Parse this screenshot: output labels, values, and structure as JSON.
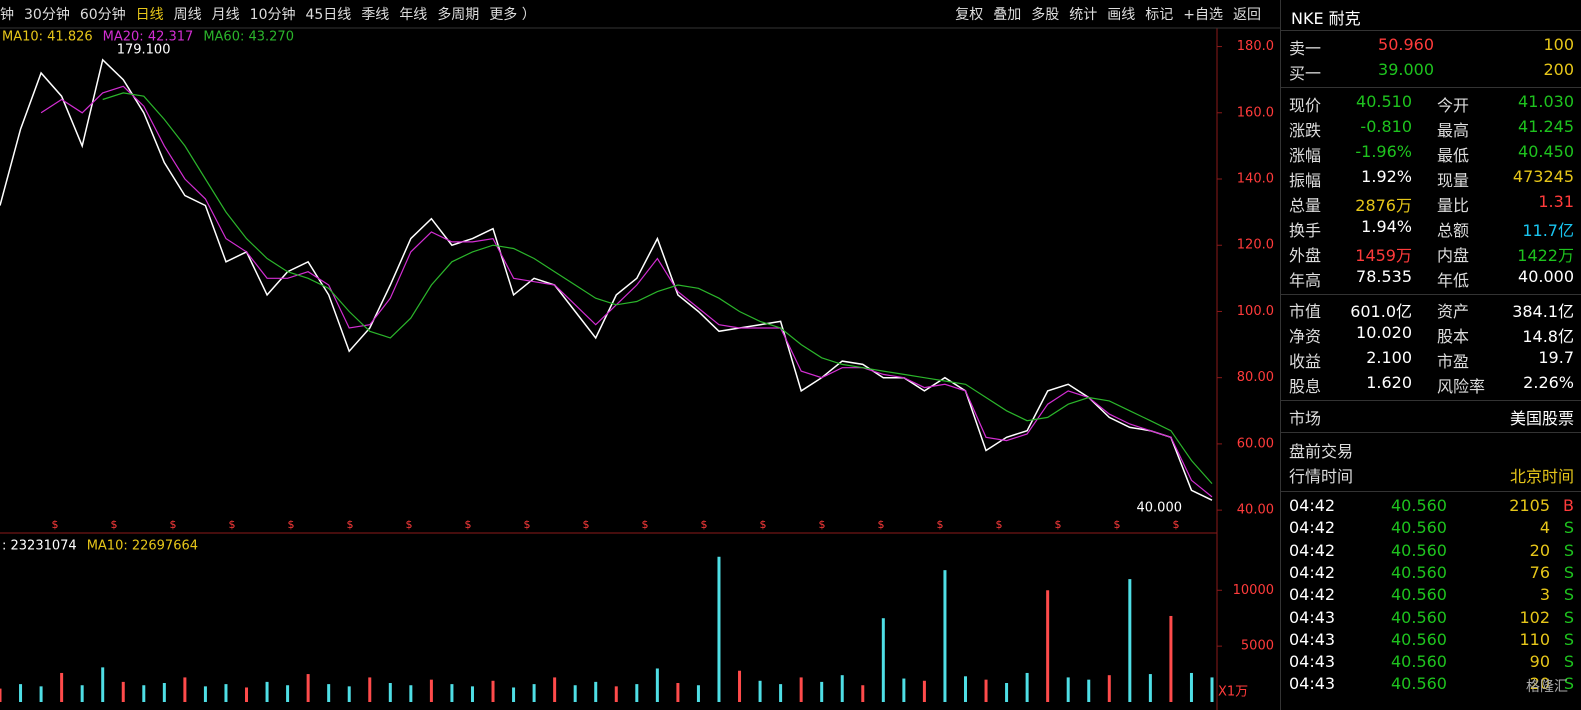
{
  "toolbar": {
    "periods": [
      "钟",
      "30分钟",
      "60分钟",
      "日线",
      "周线",
      "月线",
      "10分钟",
      "45日线",
      "季线",
      "年线",
      "多周期",
      "更多 ）"
    ],
    "active": "日线",
    "tools": [
      "复权",
      "叠加",
      "多股",
      "统计",
      "画线",
      "标记",
      "+自选",
      "返回"
    ]
  },
  "chart_data": {
    "type": "line",
    "ma_labels": [
      {
        "text": "MA10: 41.826",
        "color": "#e6c619"
      },
      {
        "text": "MA20: 42.317",
        "color": "#d22ed2"
      },
      {
        "text": "MA60: 43.270",
        "color": "#2bb52b"
      }
    ],
    "ylim": [
      34,
      185
    ],
    "yticks": [
      {
        "value": 40,
        "label": "40.00"
      },
      {
        "value": 60,
        "label": "60.00"
      },
      {
        "value": 80,
        "label": "80.00"
      },
      {
        "value": 100,
        "label": "100.0"
      },
      {
        "value": 120,
        "label": "120.0"
      },
      {
        "value": 140,
        "label": "140.0"
      },
      {
        "value": 160,
        "label": "160.0"
      },
      {
        "value": 180,
        "label": "180.0"
      }
    ],
    "series": [
      {
        "name": "Close",
        "color": "#ffffff",
        "values": [
          132,
          155,
          172,
          165,
          150,
          176,
          170,
          160,
          145,
          135,
          132,
          115,
          118,
          105,
          112,
          115,
          105,
          88,
          95,
          108,
          122,
          128,
          120,
          122,
          125,
          105,
          110,
          108,
          100,
          92,
          105,
          110,
          122,
          105,
          100,
          94,
          95,
          96,
          97,
          76,
          80,
          85,
          84,
          80,
          80,
          76,
          80,
          76,
          58,
          62,
          64,
          76,
          78,
          74,
          68,
          65,
          64,
          62,
          46,
          43
        ]
      },
      {
        "name": "MA20",
        "color": "#d22ed2",
        "values": [
          null,
          null,
          160,
          164,
          160,
          166,
          168,
          162,
          150,
          140,
          134,
          122,
          118,
          110,
          110,
          112,
          108,
          95,
          96,
          104,
          118,
          124,
          121,
          121,
          122,
          110,
          109,
          108,
          102,
          96,
          102,
          108,
          116,
          106,
          101,
          96,
          95,
          95,
          95,
          82,
          80,
          83,
          83,
          81,
          80,
          77,
          78,
          76,
          62,
          61,
          63,
          72,
          76,
          74,
          69,
          66,
          64,
          62,
          49,
          44
        ]
      },
      {
        "name": "MA60",
        "color": "#2bb52b",
        "values": [
          null,
          null,
          null,
          null,
          null,
          164,
          166,
          165,
          158,
          150,
          140,
          130,
          122,
          116,
          112,
          110,
          107,
          100,
          94,
          92,
          98,
          108,
          115,
          118,
          120,
          119,
          116,
          112,
          108,
          104,
          102,
          103,
          106,
          108,
          107,
          104,
          100,
          97,
          95,
          90,
          86,
          84,
          83,
          82,
          81,
          80,
          79,
          78,
          74,
          70,
          67,
          68,
          72,
          74,
          73,
          70,
          67,
          64,
          55,
          48
        ]
      }
    ],
    "annotations": {
      "high": "179.100",
      "low": "40.000"
    },
    "dividend_marker": "$",
    "volume": {
      "header": [
        ": 23231074",
        "MA10: 22697664"
      ],
      "unit": "X1万",
      "ylim": [
        0,
        14500
      ],
      "yticks": [
        5000,
        10000
      ],
      "color": "#4fdfe6",
      "values": [
        1200,
        1600,
        1400,
        2600,
        1500,
        3100,
        1800,
        1500,
        1700,
        2200,
        1400,
        1600,
        1300,
        1800,
        1500,
        2500,
        1600,
        1400,
        2200,
        1700,
        1500,
        2000,
        1600,
        1400,
        1900,
        1300,
        1600,
        2200,
        1500,
        1800,
        1400,
        1600,
        3000,
        1700,
        1500,
        13000,
        2800,
        1900,
        1600,
        2200,
        1800,
        2400,
        1500,
        7500,
        2100,
        1900,
        11800,
        2300,
        2000,
        1700,
        2600,
        10000,
        2200,
        2000,
        2400,
        11000,
        2500,
        7700,
        2600,
        2200
      ]
    }
  },
  "quote": {
    "title": "NKE 耐克",
    "orderbook": [
      {
        "label": "卖一",
        "price": "50.960",
        "qty": "100",
        "color": "#ff3b3b"
      },
      {
        "label": "买一",
        "price": "39.000",
        "qty": "200",
        "color": "#1ec31e"
      }
    ],
    "stats": [
      [
        {
          "l": "现价",
          "v": "40.510",
          "c": "#1ec31e"
        },
        {
          "l": "今开",
          "v": "41.030",
          "c": "#1ec31e"
        }
      ],
      [
        {
          "l": "涨跌",
          "v": "-0.810",
          "c": "#1ec31e"
        },
        {
          "l": "最高",
          "v": "41.245",
          "c": "#1ec31e"
        }
      ],
      [
        {
          "l": "涨幅",
          "v": "-1.96%",
          "c": "#1ec31e"
        },
        {
          "l": "最低",
          "v": "40.450",
          "c": "#1ec31e"
        }
      ],
      [
        {
          "l": "振幅",
          "v": "1.92%",
          "c": "#ffffff"
        },
        {
          "l": "现量",
          "v": "473245",
          "c": "#e6c619"
        }
      ],
      [
        {
          "l": "总量",
          "v": "2876万",
          "c": "#e6c619"
        },
        {
          "l": "量比",
          "v": "1.31",
          "c": "#ff3b3b"
        }
      ],
      [
        {
          "l": "换手",
          "v": "1.94%",
          "c": "#ffffff"
        },
        {
          "l": "总额",
          "v": "11.7亿",
          "c": "#19c5f0"
        }
      ],
      [
        {
          "l": "外盘",
          "v": "1459万",
          "c": "#ff3b3b"
        },
        {
          "l": "内盘",
          "v": "1422万",
          "c": "#1ec31e"
        }
      ],
      [
        {
          "l": "年高",
          "v": "78.535",
          "c": "#ffffff"
        },
        {
          "l": "年低",
          "v": "40.000",
          "c": "#ffffff"
        }
      ]
    ],
    "fundamentals": [
      [
        {
          "l": "市值",
          "v": "601.0亿"
        },
        {
          "l": "资产",
          "v": "384.1亿"
        }
      ],
      [
        {
          "l": "净资",
          "v": "10.020"
        },
        {
          "l": "股本",
          "v": "14.8亿"
        }
      ],
      [
        {
          "l": "收益",
          "v": "2.100"
        },
        {
          "l": "市盈",
          "v": "19.7"
        }
      ],
      [
        {
          "l": "股息",
          "v": "1.620"
        },
        {
          "l": "风险率",
          "v": "2.26%"
        }
      ]
    ],
    "market": {
      "label": "市场",
      "value": "美国股票"
    },
    "session": "盘前交易",
    "time_label": "行情时间",
    "time_zone": "北京时间"
  },
  "trades": {
    "rows": [
      [
        "04:42",
        "40.560",
        "2105",
        "B"
      ],
      [
        "04:42",
        "40.560",
        "4",
        "S"
      ],
      [
        "04:42",
        "40.560",
        "20",
        "S"
      ],
      [
        "04:42",
        "40.560",
        "76",
        "S"
      ],
      [
        "04:42",
        "40.560",
        "3",
        "S"
      ],
      [
        "04:43",
        "40.560",
        "102",
        "S"
      ],
      [
        "04:43",
        "40.560",
        "110",
        "S"
      ],
      [
        "04:43",
        "40.560",
        "90",
        "S"
      ],
      [
        "04:43",
        "40.560",
        "20",
        "S"
      ]
    ]
  },
  "watermark": "格隆汇"
}
